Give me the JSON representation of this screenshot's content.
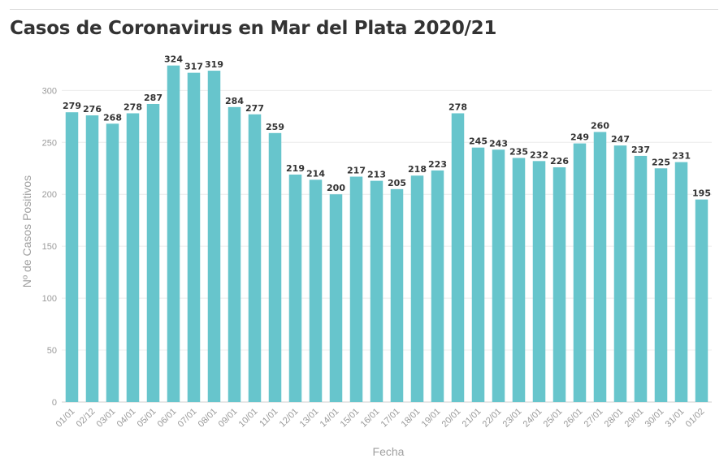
{
  "chart_data": {
    "type": "bar",
    "title": "Casos de Coronavirus en Mar del Plata 2020/21",
    "xlabel": "Fecha",
    "ylabel": "Nº de Casos Positivos",
    "categories": [
      "01/01",
      "02/12",
      "03/01",
      "04/01",
      "05/01",
      "06/01",
      "07/01",
      "08/01",
      "09/01",
      "10/01",
      "11/01",
      "12/01",
      "13/01",
      "14/01",
      "15/01",
      "16/01",
      "17/01",
      "18/01",
      "19/01",
      "20/01",
      "21/01",
      "22/01",
      "23/01",
      "24/01",
      "25/01",
      "26/01",
      "27/01",
      "28/01",
      "29/01",
      "30/01",
      "31/01",
      "01/02"
    ],
    "values": [
      279,
      276,
      268,
      278,
      287,
      324,
      317,
      319,
      284,
      277,
      259,
      219,
      214,
      200,
      217,
      213,
      205,
      218,
      223,
      278,
      245,
      243,
      235,
      232,
      226,
      249,
      260,
      247,
      237,
      225,
      231,
      195
    ],
    "ylim": [
      0,
      330
    ],
    "yticks": [
      0,
      50,
      100,
      150,
      200,
      250,
      300
    ],
    "grid": true,
    "bar_color": "#67c5cc"
  }
}
